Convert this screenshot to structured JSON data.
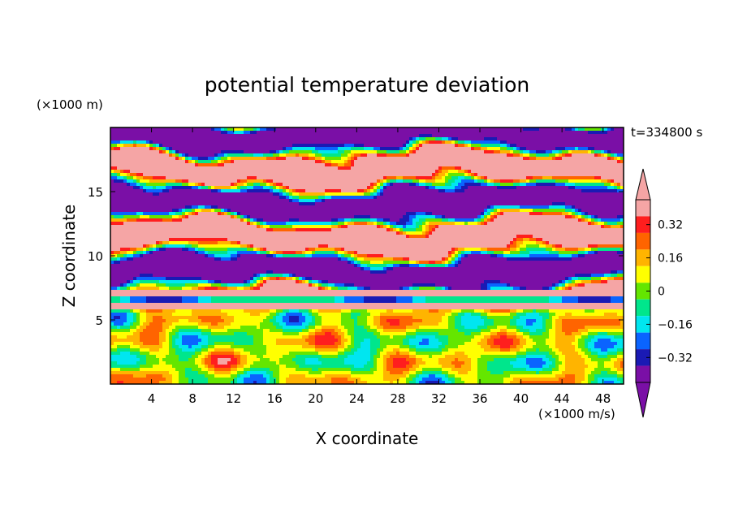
{
  "chart_data": {
    "type": "heatmap",
    "title": "potential temperature deviation",
    "xlabel": "X coordinate",
    "ylabel": "Z coordinate",
    "x_unit": "(×1000 m/s)",
    "y_unit": "(×1000 m)",
    "time_label": "t=334800 s",
    "xlim": [
      0,
      50
    ],
    "ylim": [
      0,
      20
    ],
    "x_ticks": [
      4,
      8,
      12,
      16,
      20,
      24,
      28,
      32,
      36,
      40,
      44,
      48
    ],
    "y_ticks": [
      5,
      10,
      15
    ],
    "colorbar": {
      "levels": [
        -0.4,
        -0.32,
        -0.24,
        -0.16,
        -0.08,
        0,
        0.08,
        0.16,
        0.24,
        0.32,
        0.4
      ],
      "tick_labels": [
        "0.32",
        "0.16",
        "0",
        "−0.16",
        "−0.32"
      ],
      "tick_values": [
        0.32,
        0.16,
        0,
        -0.16,
        -0.32
      ],
      "colors": [
        "#7a0fa6",
        "#1a1ab4",
        "#0a64ff",
        "#00e6f0",
        "#00e68c",
        "#64e600",
        "#ffff00",
        "#ffb400",
        "#ff6400",
        "#ff1e1e",
        "#f5a5a5"
      ],
      "extend": "both"
    },
    "field_description_bands": [
      {
        "z_range": [
          0,
          6
        ],
        "pattern": "mixed turbulent eddies, values mostly -0.2 to 0.3"
      },
      {
        "z_range": [
          6,
          20
        ],
        "pattern": "layered alternating bands of strong positive (>0.4) and strong negative (<-0.4) deviation"
      }
    ]
  }
}
